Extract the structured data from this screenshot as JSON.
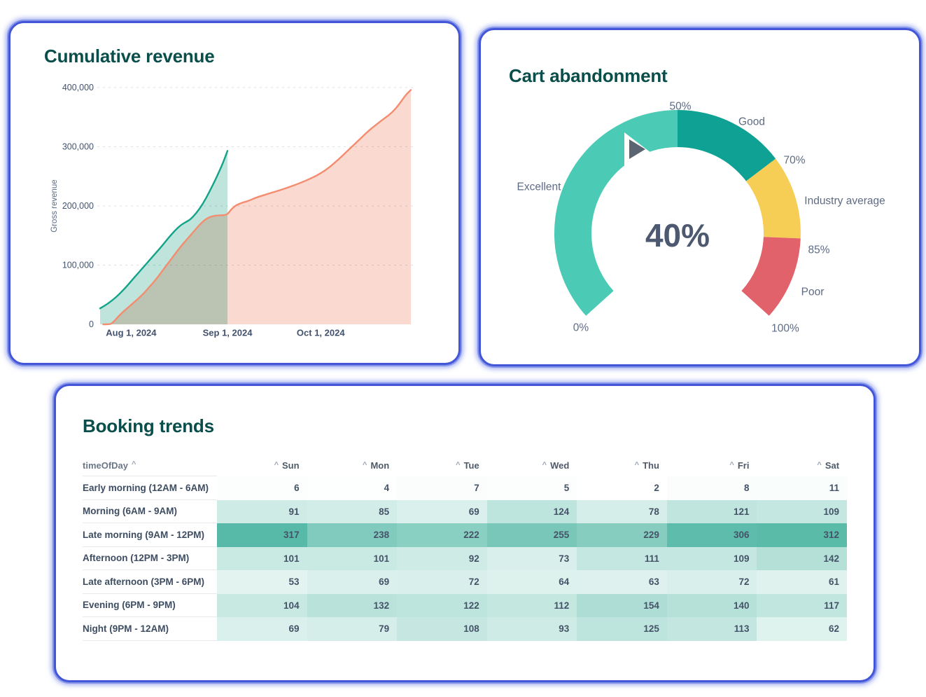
{
  "accent_colors": {
    "card_border_blue": "#4356d8",
    "title_teal": "#0a4e4b",
    "axis_text": "#42526e",
    "label_text": "#5e6b84"
  },
  "chart_data": [
    {
      "type": "area",
      "title": "Cumulative revenue",
      "ylabel": "Gross revenue",
      "xlabel": "",
      "ylim": [
        0,
        400000
      ],
      "grid": "horizontal-dashed",
      "y_ticks": [
        {
          "value": 0,
          "label": "0"
        },
        {
          "value": 100000,
          "label": "100,000"
        },
        {
          "value": 200000,
          "label": "200,000"
        },
        {
          "value": 300000,
          "label": "300,000"
        },
        {
          "value": 400000,
          "label": "400,000"
        }
      ],
      "x_ticks": [
        {
          "day": 10,
          "label": "Aug 1, 2024"
        },
        {
          "day": 41,
          "label": "Sep 1, 2024"
        },
        {
          "day": 71,
          "label": "Oct 1, 2024"
        }
      ],
      "series": [
        {
          "name": "series-teal",
          "line_color": "#12a389",
          "fill_color": "#bfe4dc",
          "points_day_value": [
            [
              0,
              27000
            ],
            [
              2,
              33000
            ],
            [
              4,
              41000
            ],
            [
              6,
              50000
            ],
            [
              8,
              61000
            ],
            [
              10,
              73000
            ],
            [
              12,
              85000
            ],
            [
              14,
              97000
            ],
            [
              16,
              109000
            ],
            [
              18,
              121000
            ],
            [
              20,
              133000
            ],
            [
              22,
              146000
            ],
            [
              24,
              158000
            ],
            [
              26,
              168000
            ],
            [
              28,
              174000
            ],
            [
              29,
              177000
            ],
            [
              31,
              188000
            ],
            [
              33,
              203000
            ],
            [
              35,
              222000
            ],
            [
              37,
              243000
            ],
            [
              39,
              266000
            ],
            [
              40,
              279000
            ],
            [
              41,
              293000
            ]
          ]
        },
        {
          "name": "series-salmon",
          "line_color": "#f48c6f",
          "fill_color": "#fadad0",
          "points_day_value": [
            [
              1,
              0
            ],
            [
              3,
              0
            ],
            [
              4,
              2000
            ],
            [
              6,
              14000
            ],
            [
              8,
              24000
            ],
            [
              10,
              33000
            ],
            [
              12,
              42000
            ],
            [
              14,
              52000
            ],
            [
              16,
              64000
            ],
            [
              18,
              76000
            ],
            [
              20,
              90000
            ],
            [
              22,
              104000
            ],
            [
              24,
              118000
            ],
            [
              26,
              132000
            ],
            [
              28,
              144000
            ],
            [
              30,
              156000
            ],
            [
              32,
              168000
            ],
            [
              34,
              178000
            ],
            [
              36,
              183000
            ],
            [
              38,
              184000
            ],
            [
              40,
              184500
            ],
            [
              41,
              186000
            ],
            [
              42,
              193000
            ],
            [
              43,
              198000
            ],
            [
              44,
              202000
            ],
            [
              46,
              206000
            ],
            [
              48,
              209000
            ],
            [
              50,
              214000
            ],
            [
              55,
              222000
            ],
            [
              60,
              230000
            ],
            [
              65,
              240000
            ],
            [
              68,
              247000
            ],
            [
              71,
              255000
            ],
            [
              74,
              266000
            ],
            [
              77,
              280000
            ],
            [
              80,
              295000
            ],
            [
              83,
              310000
            ],
            [
              86,
              325000
            ],
            [
              88,
              334000
            ],
            [
              90,
              342000
            ],
            [
              92,
              350000
            ],
            [
              94,
              358000
            ],
            [
              96,
              370000
            ],
            [
              98,
              385000
            ],
            [
              99,
              391000
            ],
            [
              100,
              396000
            ]
          ]
        }
      ]
    },
    {
      "type": "gauge",
      "title": "Cart abandonment",
      "value": 40,
      "value_label": "40%",
      "needle_color": "#5b6572",
      "ticks": [
        {
          "value": 0,
          "label": "0%"
        },
        {
          "value": 50,
          "label": "50%"
        },
        {
          "value": 70,
          "label": "70%"
        },
        {
          "value": 85,
          "label": "85%"
        },
        {
          "value": 100,
          "label": "100%"
        }
      ],
      "segments": [
        {
          "label": "Excellent",
          "from": 0,
          "to": 50,
          "color": "#4bcbb5"
        },
        {
          "label": "Good",
          "from": 50,
          "to": 70,
          "color": "#0fa294"
        },
        {
          "label": "Industry average",
          "from": 70,
          "to": 85,
          "color": "#f7ce55"
        },
        {
          "label": "Poor",
          "from": 85,
          "to": 100,
          "color": "#e2626b"
        }
      ]
    },
    {
      "type": "heatmap",
      "title": "Booking trends",
      "row_header": "timeOfDay",
      "columns": [
        "Sun",
        "Mon",
        "Tue",
        "Wed",
        "Thu",
        "Fri",
        "Sat"
      ],
      "rows": [
        {
          "label": "Early morning (12AM - 6AM)",
          "values": [
            6,
            4,
            7,
            5,
            2,
            8,
            11
          ]
        },
        {
          "label": "Morning (6AM - 9AM)",
          "values": [
            91,
            85,
            69,
            124,
            78,
            121,
            109
          ]
        },
        {
          "label": "Late morning (9AM - 12PM)",
          "values": [
            317,
            238,
            222,
            255,
            229,
            306,
            312
          ]
        },
        {
          "label": "Afternoon (12PM - 3PM)",
          "values": [
            101,
            101,
            92,
            73,
            111,
            109,
            142
          ]
        },
        {
          "label": "Late afternoon (3PM - 6PM)",
          "values": [
            53,
            69,
            72,
            64,
            63,
            72,
            61
          ]
        },
        {
          "label": "Evening (6PM - 9PM)",
          "values": [
            104,
            132,
            122,
            112,
            154,
            140,
            117
          ]
        },
        {
          "label": "Night (9PM - 12AM)",
          "values": [
            69,
            79,
            108,
            93,
            125,
            113,
            62
          ]
        }
      ],
      "color_scale": {
        "min": 0,
        "max": 317,
        "min_color": "#ffffff",
        "max_color": "#57baa8"
      }
    }
  ]
}
